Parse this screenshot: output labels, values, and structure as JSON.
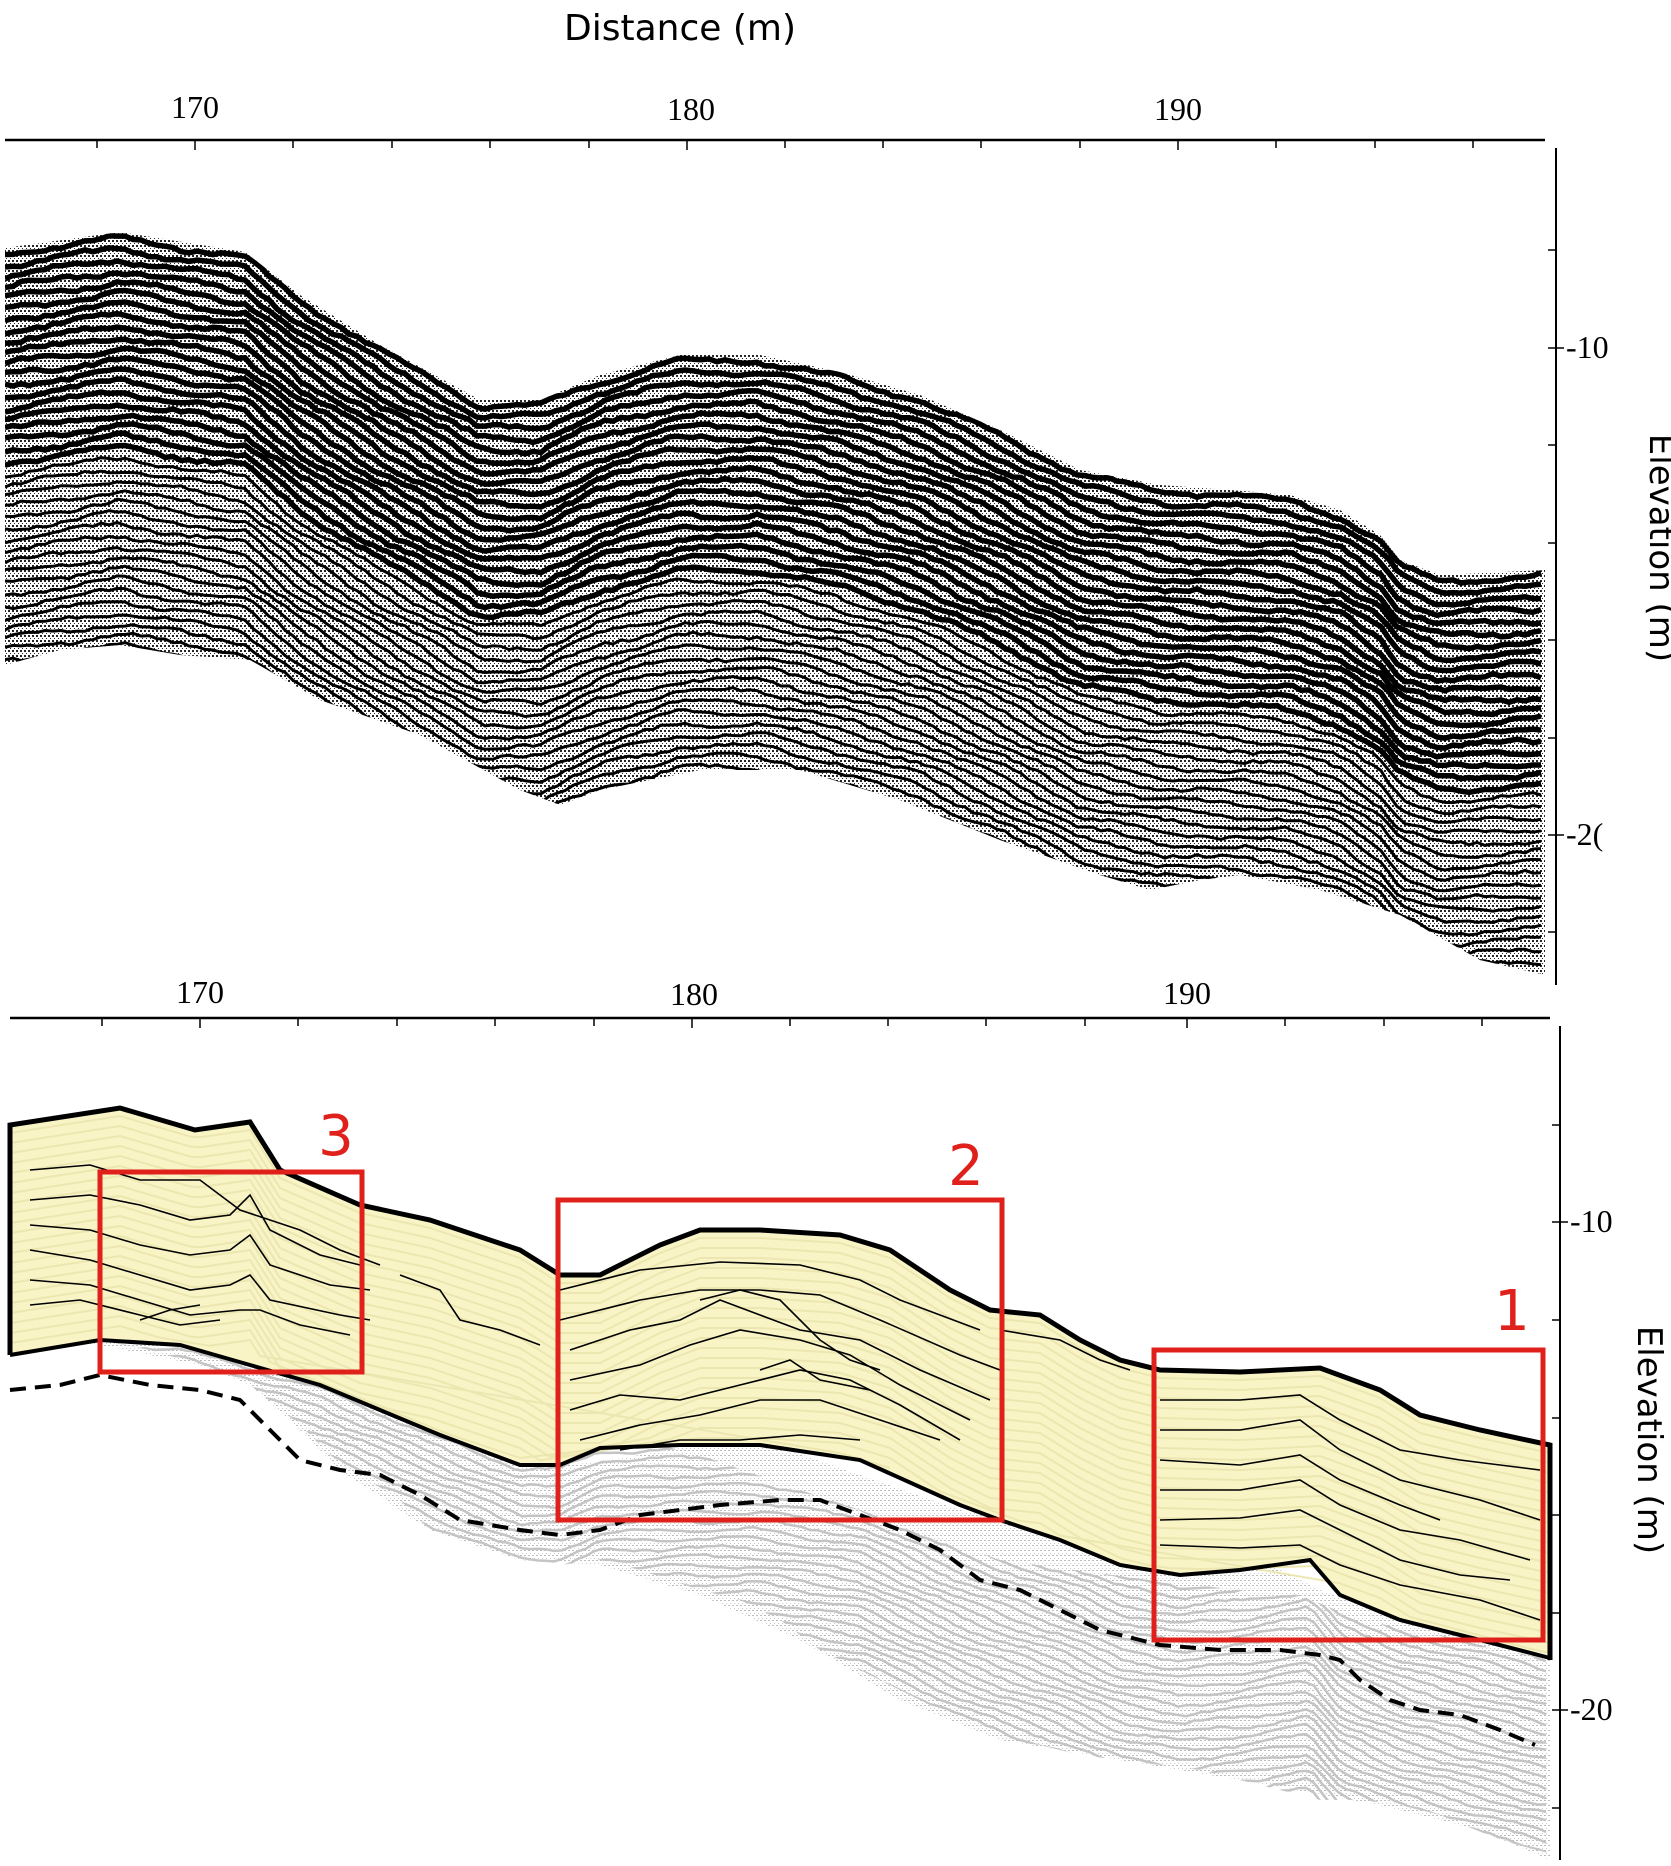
{
  "title": "Distance (m)",
  "top_panel": {
    "x_ticks": [
      "170",
      "180",
      "190"
    ],
    "y_ticks": [
      "-10",
      "-2("
    ],
    "y_label": "Elevation (m)"
  },
  "bottom_panel": {
    "x_ticks": [
      "170",
      "180",
      "190"
    ],
    "y_ticks": [
      "-10",
      "-20"
    ],
    "y_label": "Elevation (m)"
  },
  "boxes": [
    {
      "label": "1"
    },
    {
      "label": "2"
    },
    {
      "label": "3"
    }
  ],
  "colors": {
    "seismic": "#000000",
    "fill_upper": "#f8f4c6",
    "fill_lower": "#d0d0d0",
    "box": "#e0201b"
  }
}
